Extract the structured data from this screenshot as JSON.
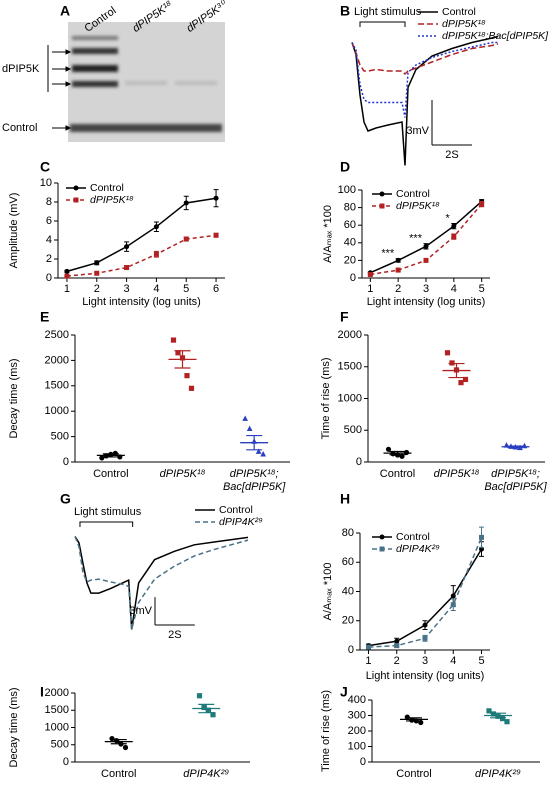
{
  "chart_data": [
    {
      "type": "blot",
      "panel": "A",
      "lanes": [
        "Control",
        "dPIP5K¹⁸",
        "dPIP5K³⁰"
      ],
      "rows": [
        "dPIP5K",
        "Control"
      ]
    },
    {
      "type": "trace",
      "panel": "B",
      "x": [
        0,
        0.2,
        0.4,
        0.6,
        0.8,
        1.2,
        1.8,
        2.5,
        2.65,
        2.8,
        3.2,
        4,
        5,
        6,
        7,
        7.3
      ],
      "xlim": [
        0,
        7.4
      ],
      "ylim": [
        -8.5,
        0.5
      ],
      "series": [
        {
          "name": "Control",
          "color": "#000000",
          "dash": "none",
          "values": [
            0,
            -0.8,
            -3.5,
            -5.3,
            -5.9,
            -5.7,
            -5.5,
            -5.3,
            -8.2,
            -3,
            -1.8,
            -0.9,
            -0.4,
            0,
            0.3,
            0.4
          ]
        },
        {
          "name": "dPIP5K¹⁸",
          "color": "#b22222",
          "dash": "6 3",
          "values": [
            0,
            -0.7,
            -1.5,
            -1.9,
            -1.9,
            -1.8,
            -1.9,
            -1.9,
            -2.1,
            -1.9,
            -1.7,
            -1.3,
            -0.8,
            -0.4,
            -0.2,
            -0.1
          ]
        },
        {
          "name": "dPIP5K¹⁸;Bac[dPIP5K]",
          "color": "#2233cc",
          "dash": "2 2",
          "values": [
            0,
            -0.5,
            -2.8,
            -3.8,
            -4,
            -4,
            -4,
            -4,
            -5,
            -2,
            -1.5,
            -1,
            -0.6,
            -0.3,
            0,
            0
          ]
        }
      ],
      "stimulus": {
        "label": "Light stimulus",
        "start": 0.4,
        "end": 2.65
      },
      "scalebar": {
        "x": {
          "value": 2,
          "label": "2S"
        },
        "y": {
          "value": 3,
          "label": "3mV"
        }
      }
    },
    {
      "type": "line",
      "panel": "C",
      "x": [
        1,
        2,
        3,
        4,
        5,
        6
      ],
      "xlim": [
        0.7,
        6.3
      ],
      "xticks": [
        1,
        2,
        3,
        4,
        5,
        6
      ],
      "ylim": [
        0,
        10
      ],
      "yticks": [
        0,
        2,
        4,
        6,
        8,
        10
      ],
      "xlabel": "Light intensity (log units)",
      "ylabel": "Amplitude (mV)",
      "series": [
        {
          "name": "Control",
          "color": "#000000",
          "dash": "none",
          "marker": "circle",
          "values": [
            0.7,
            1.6,
            3.3,
            5.4,
            7.9,
            8.4
          ],
          "errors": [
            0.1,
            0.2,
            0.5,
            0.5,
            0.7,
            0.9
          ]
        },
        {
          "name": "dPIP5K¹⁸",
          "color": "#b22222",
          "dash": "4 3",
          "marker": "square",
          "values": [
            0.2,
            0.5,
            1.1,
            2.5,
            4.1,
            4.5
          ],
          "errors": [
            0.05,
            0.1,
            0.2,
            0.3,
            0.2,
            0.2
          ]
        }
      ]
    },
    {
      "type": "line",
      "panel": "D",
      "x": [
        1,
        2,
        3,
        4,
        5
      ],
      "xlim": [
        0.7,
        5.3
      ],
      "xticks": [
        1,
        2,
        3,
        4,
        5
      ],
      "ylim": [
        0,
        100
      ],
      "yticks": [
        0,
        20,
        40,
        60,
        80,
        100
      ],
      "xlabel": "Light intensity (log units)",
      "ylabel": "A/Aₘₐₓ *100",
      "series": [
        {
          "name": "Control",
          "color": "#000000",
          "dash": "none",
          "marker": "circle",
          "values": [
            6,
            20,
            36,
            59,
            87
          ],
          "errors": [
            1,
            2,
            3,
            3,
            2
          ]
        },
        {
          "name": "dPIP5K¹⁸",
          "color": "#b22222",
          "dash": "4 3",
          "marker": "square",
          "values": [
            4,
            9,
            20,
            47,
            84
          ],
          "errors": [
            1,
            1,
            1,
            3,
            3
          ]
        }
      ],
      "annotations": [
        {
          "text": "***",
          "x": 2
        },
        {
          "text": "***",
          "x": 3
        },
        {
          "text": "*",
          "x": 4
        }
      ]
    },
    {
      "type": "dot",
      "panel": "E",
      "categories": [
        "Control",
        "dPIP5K¹⁸",
        "dPIP5K¹⁸; Bac[dPIP5K]"
      ],
      "colors": [
        "#000000",
        "#b22222",
        "#2a3fbf"
      ],
      "markers": [
        "circle",
        "square",
        "triangle"
      ],
      "points": [
        [
          80,
          120,
          150,
          170,
          100
        ],
        [
          2400,
          2150,
          2050,
          1700,
          1450
        ],
        [
          850,
          650,
          400,
          200,
          150
        ]
      ],
      "means": [
        130,
        2020,
        380
      ],
      "errors": [
        30,
        170,
        140
      ],
      "ylim": [
        0,
        2500
      ],
      "yticks": [
        0,
        500,
        1000,
        1500,
        2000,
        2500
      ],
      "ylabel": "Decay time (ms)"
    },
    {
      "type": "dot",
      "panel": "F",
      "categories": [
        "Control",
        "dPIP5K¹⁸",
        "dPIP5K¹⁸; Bac[dPIP5K]"
      ],
      "colors": [
        "#000000",
        "#b22222",
        "#2a3fbf"
      ],
      "markers": [
        "circle",
        "square",
        "triangle"
      ],
      "points": [
        [
          200,
          130,
          110,
          90,
          150
        ],
        [
          1720,
          1560,
          1450,
          1250,
          1300
        ],
        [
          260,
          240,
          230,
          220,
          250
        ]
      ],
      "means": [
        140,
        1440,
        240
      ],
      "errors": [
        25,
        110,
        10
      ],
      "ylim": [
        0,
        2000
      ],
      "yticks": [
        0,
        500,
        1000,
        1500,
        2000
      ],
      "ylabel": "Time of rise (ms)"
    },
    {
      "type": "trace",
      "panel": "G",
      "x": [
        0,
        0.2,
        0.4,
        0.6,
        0.8,
        1.2,
        1.8,
        2.5,
        2.7,
        2.85,
        3.2,
        4,
        5,
        6,
        7,
        8.7
      ],
      "xlim": [
        0,
        8.8
      ],
      "ylim": [
        -10.5,
        0.8
      ],
      "series": [
        {
          "name": "Control",
          "color": "#000000",
          "dash": "none",
          "values": [
            0,
            -0.7,
            -2.9,
            -5,
            -6.1,
            -6.1,
            -5.6,
            -4.9,
            -4.7,
            -10,
            -5,
            -2.5,
            -1.6,
            -0.9,
            -0.6,
            -0.1
          ]
        },
        {
          "name": "dPIP4K²⁹",
          "color": "#4a7286",
          "dash": "5 3",
          "values": [
            0,
            -1.1,
            -3.9,
            -4.9,
            -4.7,
            -4.6,
            -4.9,
            -5.2,
            -5.4,
            -10,
            -7.1,
            -4.6,
            -3.2,
            -2.1,
            -1.4,
            -0.4
          ]
        }
      ],
      "stimulus": {
        "label": "Light stimulus",
        "start": 0.25,
        "end": 2.9
      },
      "scalebar": {
        "x": {
          "value": 2,
          "label": "2S"
        },
        "y": {
          "value": 3,
          "label": "3mV"
        }
      }
    },
    {
      "type": "line",
      "panel": "H",
      "x": [
        1,
        2,
        3,
        4,
        5
      ],
      "xlim": [
        0.7,
        5.3
      ],
      "xticks": [
        1,
        2,
        3,
        4,
        5
      ],
      "ylim": [
        0,
        80
      ],
      "yticks": [
        0,
        20,
        40,
        60,
        80
      ],
      "xlabel": "Light intensity (log units)",
      "ylabel": "A/Aₘₐₓ *100",
      "series": [
        {
          "name": "Control",
          "color": "#000000",
          "dash": "none",
          "marker": "circle",
          "values": [
            3,
            6,
            17,
            37,
            69
          ],
          "errors": [
            1,
            2,
            3,
            7,
            5
          ]
        },
        {
          "name": "dPIP4K²⁹",
          "color": "#4a7286",
          "dash": "5 3",
          "marker": "square",
          "values": [
            2,
            3,
            8,
            31,
            77
          ],
          "errors": [
            1,
            1,
            2,
            4,
            7
          ]
        }
      ]
    },
    {
      "type": "dot",
      "panel": "I",
      "categories": [
        "Control",
        "dPIP4K²⁹"
      ],
      "colors": [
        "#000000",
        "#1f7a7a"
      ],
      "markers": [
        "circle",
        "square"
      ],
      "points": [
        [
          680,
          620,
          520,
          420
        ],
        [
          1920,
          1580,
          1500,
          1370
        ]
      ],
      "means": [
        590,
        1550
      ],
      "errors": [
        60,
        120
      ],
      "ylim": [
        0,
        2000
      ],
      "yticks": [
        0,
        500,
        1000,
        1500,
        2000
      ],
      "ylabel": "Decay time (ms)"
    },
    {
      "type": "dot",
      "panel": "J",
      "categories": [
        "Control",
        "dPIP4K²⁹"
      ],
      "colors": [
        "#000000",
        "#1f7a7a"
      ],
      "markers": [
        "circle",
        "square"
      ],
      "points": [
        [
          290,
          270,
          265,
          255
        ],
        [
          330,
          310,
          295,
          280,
          260
        ]
      ],
      "means": [
        275,
        300
      ],
      "errors": [
        10,
        15
      ],
      "ylim": [
        0,
        400
      ],
      "yticks": [
        0,
        100,
        200,
        300,
        400
      ],
      "ylabel": "Time of rise (ms)"
    }
  ]
}
